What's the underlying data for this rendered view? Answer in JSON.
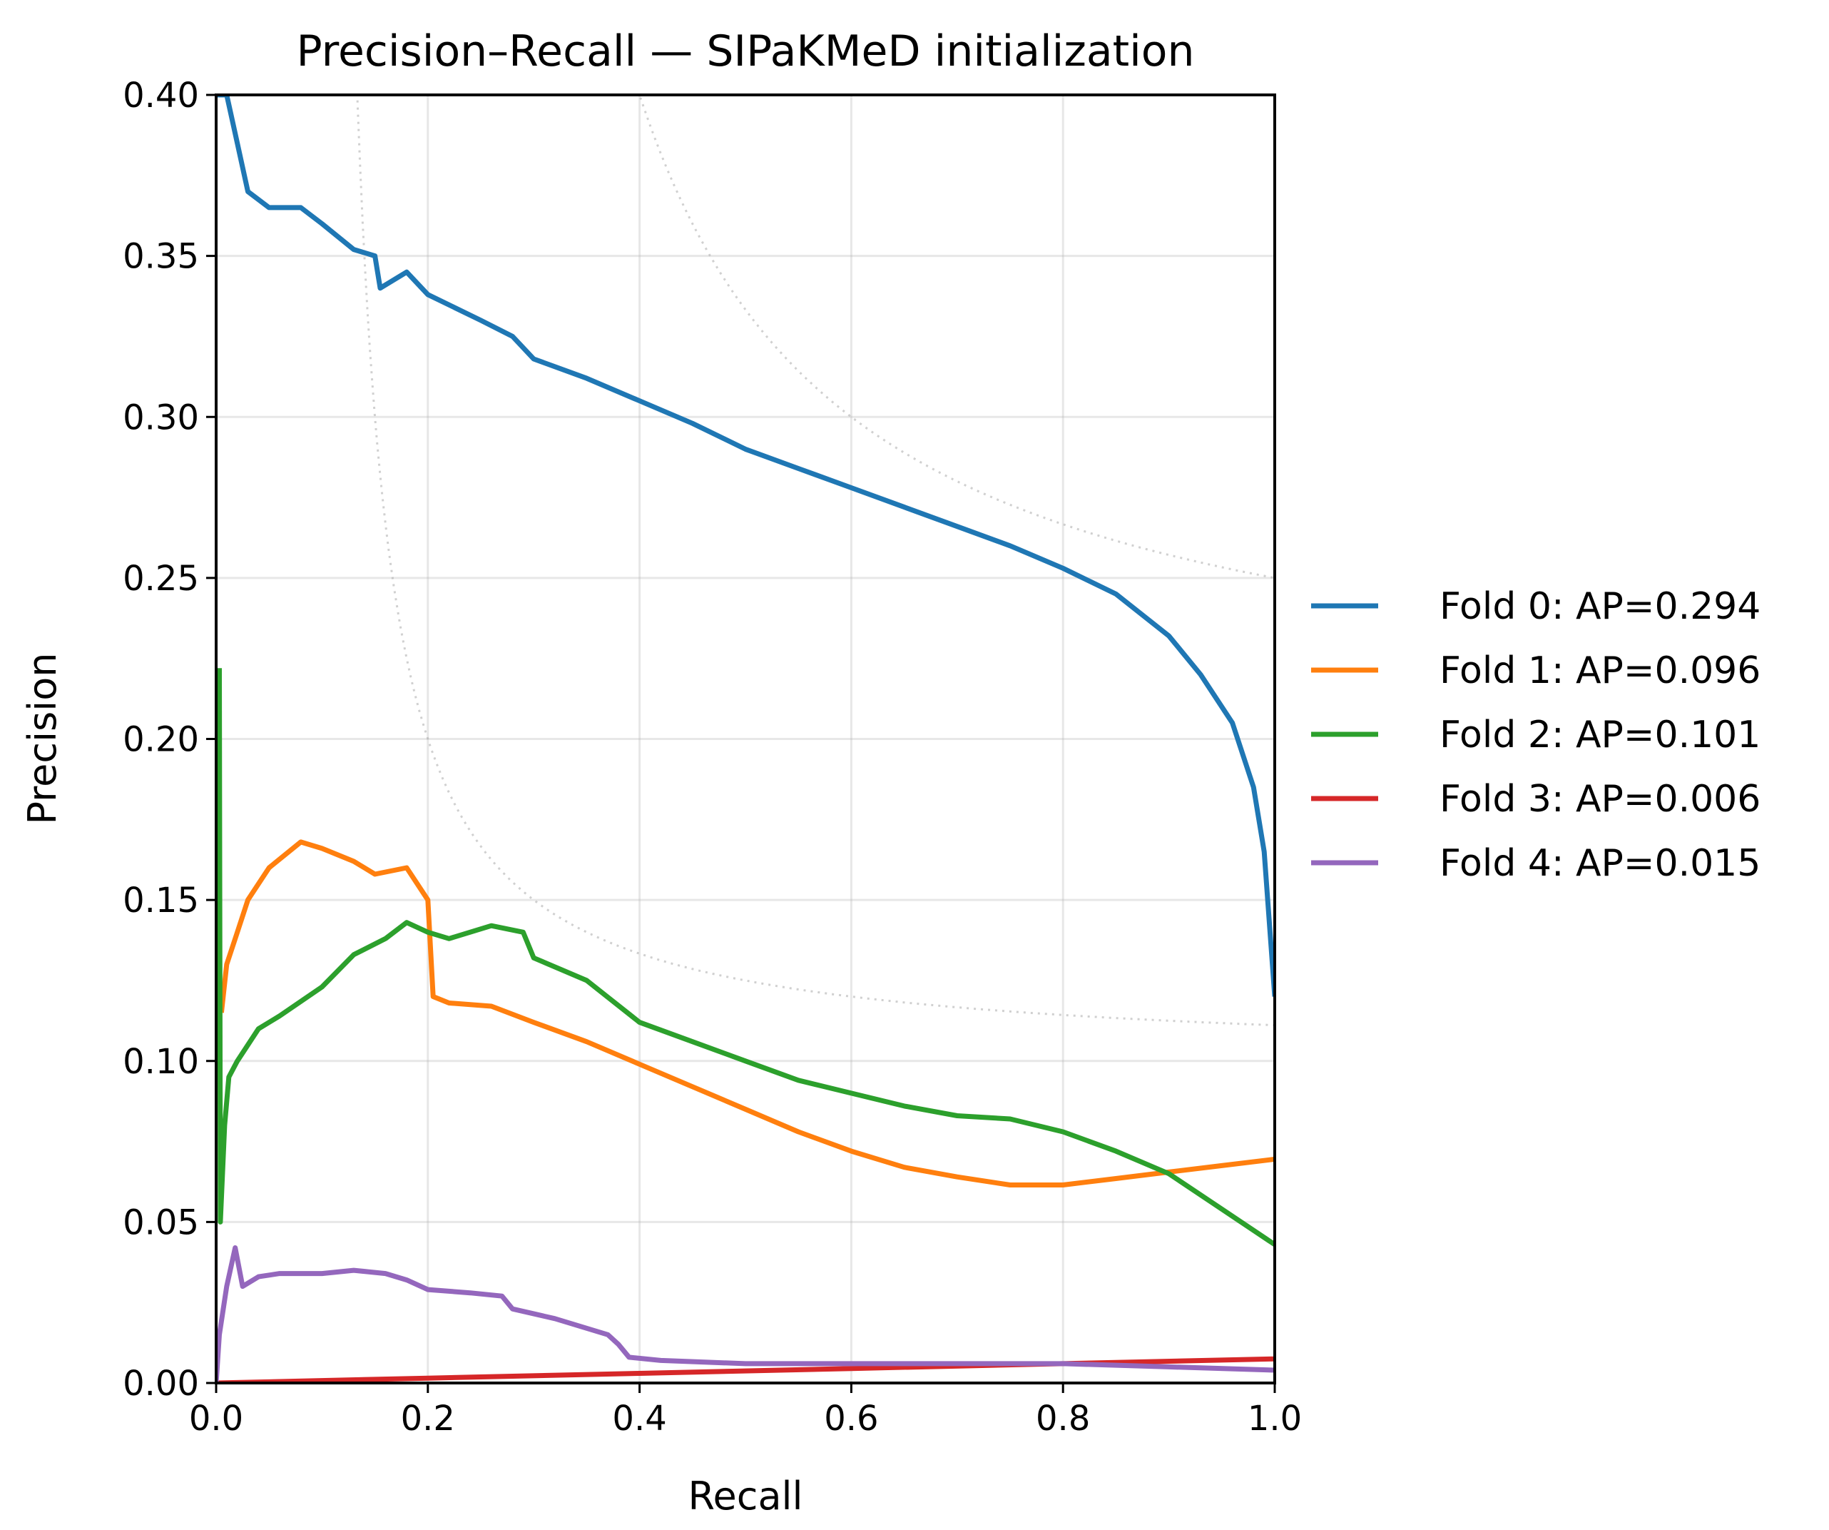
{
  "chart_data": {
    "type": "line",
    "title": "Precision–Recall — SIPaKMeD initialization",
    "xlabel": "Recall",
    "ylabel": "Precision",
    "xlim": [
      0.0,
      1.0
    ],
    "ylim": [
      0.0,
      0.4
    ],
    "xticks": [
      "0.0",
      "0.2",
      "0.4",
      "0.6",
      "0.8",
      "1.0"
    ],
    "yticks": [
      "0.00",
      "0.05",
      "0.10",
      "0.15",
      "0.20",
      "0.25",
      "0.30",
      "0.35",
      "0.40"
    ],
    "grid": true,
    "legend_placement": "outside-right",
    "iso_f1_reference_lines": [
      0.2,
      0.4
    ],
    "series": [
      {
        "name": "Fold 0: AP=0.294",
        "color": "#1f77b4",
        "points": [
          [
            0.0,
            0.4
          ],
          [
            0.01,
            0.4
          ],
          [
            0.02,
            0.385
          ],
          [
            0.03,
            0.37
          ],
          [
            0.05,
            0.365
          ],
          [
            0.08,
            0.365
          ],
          [
            0.1,
            0.36
          ],
          [
            0.13,
            0.352
          ],
          [
            0.15,
            0.35
          ],
          [
            0.155,
            0.34
          ],
          [
            0.18,
            0.345
          ],
          [
            0.2,
            0.338
          ],
          [
            0.25,
            0.33
          ],
          [
            0.28,
            0.325
          ],
          [
            0.3,
            0.318
          ],
          [
            0.35,
            0.312
          ],
          [
            0.4,
            0.305
          ],
          [
            0.45,
            0.298
          ],
          [
            0.5,
            0.29
          ],
          [
            0.55,
            0.284
          ],
          [
            0.6,
            0.278
          ],
          [
            0.65,
            0.272
          ],
          [
            0.7,
            0.266
          ],
          [
            0.75,
            0.26
          ],
          [
            0.8,
            0.253
          ],
          [
            0.85,
            0.245
          ],
          [
            0.9,
            0.232
          ],
          [
            0.93,
            0.22
          ],
          [
            0.96,
            0.205
          ],
          [
            0.98,
            0.185
          ],
          [
            0.99,
            0.165
          ],
          [
            1.0,
            0.12
          ]
        ]
      },
      {
        "name": "Fold 1: AP=0.096",
        "color": "#ff7f0e",
        "points": [
          [
            0.005,
            0.115
          ],
          [
            0.01,
            0.13
          ],
          [
            0.02,
            0.14
          ],
          [
            0.03,
            0.15
          ],
          [
            0.05,
            0.16
          ],
          [
            0.08,
            0.168
          ],
          [
            0.1,
            0.166
          ],
          [
            0.13,
            0.162
          ],
          [
            0.15,
            0.158
          ],
          [
            0.18,
            0.16
          ],
          [
            0.2,
            0.15
          ],
          [
            0.205,
            0.12
          ],
          [
            0.22,
            0.118
          ],
          [
            0.26,
            0.117
          ],
          [
            0.3,
            0.112
          ],
          [
            0.35,
            0.106
          ],
          [
            0.4,
            0.099
          ],
          [
            0.45,
            0.092
          ],
          [
            0.5,
            0.085
          ],
          [
            0.55,
            0.078
          ],
          [
            0.6,
            0.072
          ],
          [
            0.65,
            0.067
          ],
          [
            0.7,
            0.064
          ],
          [
            0.75,
            0.0615
          ],
          [
            0.8,
            0.0615
          ],
          [
            0.85,
            0.0635
          ],
          [
            0.9,
            0.0655
          ],
          [
            0.95,
            0.0675
          ],
          [
            1.0,
            0.0695
          ]
        ]
      },
      {
        "name": "Fold 2: AP=0.101",
        "color": "#2ca02c",
        "points": [
          [
            0.003,
            0.222
          ],
          [
            0.004,
            0.05
          ],
          [
            0.008,
            0.08
          ],
          [
            0.012,
            0.095
          ],
          [
            0.02,
            0.1
          ],
          [
            0.04,
            0.11
          ],
          [
            0.06,
            0.114
          ],
          [
            0.1,
            0.123
          ],
          [
            0.13,
            0.133
          ],
          [
            0.16,
            0.138
          ],
          [
            0.18,
            0.143
          ],
          [
            0.2,
            0.14
          ],
          [
            0.22,
            0.138
          ],
          [
            0.26,
            0.142
          ],
          [
            0.29,
            0.14
          ],
          [
            0.3,
            0.132
          ],
          [
            0.35,
            0.125
          ],
          [
            0.4,
            0.112
          ],
          [
            0.45,
            0.106
          ],
          [
            0.5,
            0.1
          ],
          [
            0.55,
            0.094
          ],
          [
            0.6,
            0.09
          ],
          [
            0.65,
            0.086
          ],
          [
            0.7,
            0.083
          ],
          [
            0.75,
            0.082
          ],
          [
            0.8,
            0.078
          ],
          [
            0.85,
            0.072
          ],
          [
            0.9,
            0.065
          ],
          [
            0.95,
            0.054
          ],
          [
            1.0,
            0.043
          ]
        ]
      },
      {
        "name": "Fold 3: AP=0.006",
        "color": "#d62728",
        "points": [
          [
            0.0,
            0.0
          ],
          [
            0.2,
            0.0015
          ],
          [
            0.4,
            0.003
          ],
          [
            0.6,
            0.0045
          ],
          [
            0.8,
            0.006
          ],
          [
            1.0,
            0.0075
          ]
        ]
      },
      {
        "name": "Fold 4: AP=0.015",
        "color": "#9467bd",
        "points": [
          [
            0.0,
            0.0
          ],
          [
            0.003,
            0.015
          ],
          [
            0.01,
            0.03
          ],
          [
            0.018,
            0.042
          ],
          [
            0.025,
            0.03
          ],
          [
            0.04,
            0.033
          ],
          [
            0.06,
            0.034
          ],
          [
            0.1,
            0.034
          ],
          [
            0.13,
            0.035
          ],
          [
            0.16,
            0.034
          ],
          [
            0.18,
            0.032
          ],
          [
            0.2,
            0.029
          ],
          [
            0.24,
            0.028
          ],
          [
            0.27,
            0.027
          ],
          [
            0.28,
            0.023
          ],
          [
            0.32,
            0.02
          ],
          [
            0.35,
            0.017
          ],
          [
            0.37,
            0.015
          ],
          [
            0.38,
            0.012
          ],
          [
            0.39,
            0.008
          ],
          [
            0.42,
            0.007
          ],
          [
            0.5,
            0.006
          ],
          [
            0.6,
            0.006
          ],
          [
            0.7,
            0.006
          ],
          [
            0.8,
            0.006
          ],
          [
            0.9,
            0.005
          ],
          [
            1.0,
            0.004
          ]
        ]
      }
    ]
  }
}
